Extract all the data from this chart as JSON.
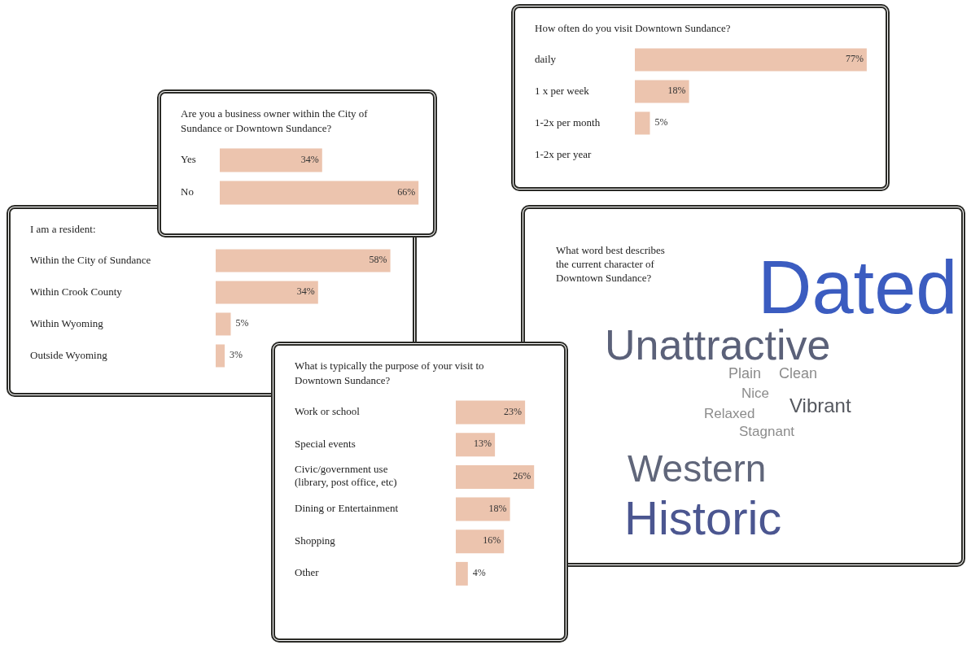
{
  "chart_data": [
    {
      "type": "bar",
      "orientation": "horizontal",
      "title": "Are you a business owner within the City of Sundance or Downtown Sundance?",
      "categories": [
        "Yes",
        "No"
      ],
      "values": [
        34,
        66
      ],
      "value_labels": [
        "34%",
        "66%"
      ],
      "color": "#ecc4ae"
    },
    {
      "type": "bar",
      "orientation": "horizontal",
      "title": "How often do you visit Downtown Sundance?",
      "categories": [
        "daily",
        "1 x per week",
        "1-2x per month",
        "1-2x per year"
      ],
      "values": [
        77,
        18,
        5,
        null
      ],
      "value_labels": [
        "77%",
        "18%",
        "5%",
        null
      ],
      "color": "#ecc4ae"
    },
    {
      "type": "bar",
      "orientation": "horizontal",
      "title": "I am a resident:",
      "categories": [
        "Within the City of Sundance",
        "Within Crook County",
        "Within Wyoming",
        "Outside Wyoming"
      ],
      "values": [
        58,
        34,
        5,
        3
      ],
      "value_labels": [
        "58%",
        "34%",
        "5%",
        "3%"
      ],
      "color": "#ecc4ae"
    },
    {
      "type": "bar",
      "orientation": "horizontal",
      "title": "What is typically the purpose of your visit to Downtown Sundance?",
      "categories": [
        "Work or school",
        "Special events",
        "Civic/government use (library, post office, etc)",
        "Dining or Entertainment",
        "Shopping",
        "Other"
      ],
      "values": [
        23,
        13,
        26,
        18,
        16,
        4
      ],
      "value_labels": [
        "23%",
        "13%",
        "26%",
        "18%",
        "16%",
        "4%"
      ],
      "color": "#ecc4ae"
    },
    {
      "type": "other",
      "title": "What word best describes the current character of Downtown Sundance?",
      "categories": [
        "Dated",
        "Unattractive",
        "Plain",
        "Clean",
        "Nice",
        "Relaxed",
        "Vibrant",
        "Stagnant",
        "Western",
        "Historic"
      ],
      "colors": [
        "#3b5cc0",
        "#5b6179",
        "#8c8c8c",
        "#8c8c8c",
        "#8c8c8c",
        "#8c8c8c",
        "#55585f",
        "#8c8c8c",
        "#60667a",
        "#4b5690"
      ]
    }
  ]
}
